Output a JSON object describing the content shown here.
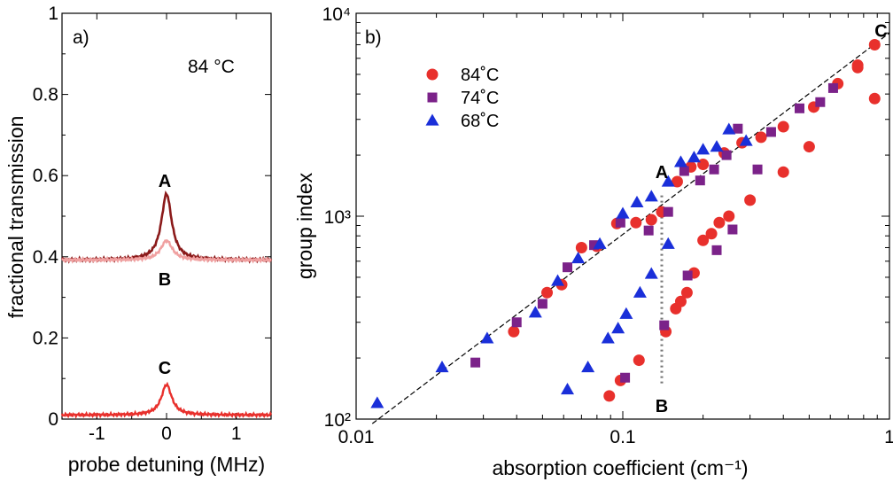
{
  "chart_data": [
    {
      "type": "line",
      "panel_label": "a)",
      "annotation": "84 °C",
      "xlabel": "probe detuning (MHz)",
      "ylabel": "fractional transmission",
      "xlim": [
        -1.5,
        1.5
      ],
      "ylim": [
        0,
        1
      ],
      "x_ticks": [
        "-1",
        "0",
        "1"
      ],
      "x_tick_values": [
        -1,
        0,
        1
      ],
      "y_ticks": [
        "0",
        "0.2",
        "0.4",
        "0.6",
        "0.8",
        "1"
      ],
      "y_tick_values": [
        0,
        0.2,
        0.4,
        0.6,
        0.8,
        1
      ],
      "y_tick_text": [
        "0",
        "0.2",
        "0.4",
        "0.6",
        "0.8",
        "1"
      ],
      "grid": false,
      "legend": "none",
      "series": [
        {
          "label": "A",
          "color": "#8b1a1a",
          "baseline": 0.392,
          "peak": 0.555,
          "center": 0,
          "width": 0.09
        },
        {
          "label": "B",
          "color": "#f0a0a0",
          "baseline": 0.392,
          "peak": 0.44,
          "center": 0,
          "width": 0.1
        },
        {
          "label": "C",
          "color": "#e8302c",
          "baseline": 0.01,
          "peak": 0.085,
          "center": 0,
          "width": 0.09
        }
      ],
      "curve_labels": [
        {
          "text": "A",
          "x": 0,
          "y": 0.585
        },
        {
          "text": "B",
          "x": 0,
          "y": 0.343
        },
        {
          "text": "C",
          "x": 0,
          "y": 0.125
        }
      ]
    },
    {
      "type": "scatter",
      "panel_label": "b)",
      "xlabel": "absorption coefficient (cm⁻¹)",
      "ylabel": "group index",
      "x_scale": "log",
      "y_scale": "log",
      "xlim": [
        0.01,
        1
      ],
      "ylim": [
        100,
        10000
      ],
      "x_ticks": [
        "0.01",
        "0.1",
        "1"
      ],
      "x_tick_values": [
        0.01,
        0.1,
        1
      ],
      "y_ticks": [
        "10²",
        "10³",
        "10⁴"
      ],
      "y_tick_values": [
        100,
        1000,
        10000
      ],
      "grid": false,
      "legend": "top-left",
      "fit_line": {
        "style": "dashed",
        "x": [
          0.0115,
          1
        ],
        "y": [
          95,
          8000
        ]
      },
      "marker_line": {
        "x": 0.14,
        "y": [
          150,
          1300
        ],
        "style": "dotted"
      },
      "point_labels": [
        {
          "text": "A",
          "x": 0.14,
          "y": 1650
        },
        {
          "text": "B",
          "x": 0.14,
          "y": 116
        },
        {
          "text": "C",
          "x": 0.93,
          "y": 8200
        }
      ],
      "series": [
        {
          "name": "84˚C",
          "marker": "circle",
          "color": "#e8302c",
          "x": [
            0.039,
            0.052,
            0.059,
            0.07,
            0.08,
            0.095,
            0.112,
            0.128,
            0.14,
            0.16,
            0.18,
            0.2,
            0.24,
            0.28,
            0.33,
            0.4,
            0.52,
            0.64,
            0.76,
            0.88,
            0.089,
            0.098,
            0.115,
            0.145,
            0.158,
            0.165,
            0.174,
            0.185,
            0.2,
            0.215,
            0.23,
            0.25,
            0.3,
            0.4,
            0.5,
            0.76,
            0.88
          ],
          "y": [
            270,
            420,
            460,
            700,
            710,
            920,
            930,
            960,
            1050,
            1480,
            1750,
            1800,
            2050,
            2300,
            2450,
            2760,
            3450,
            4500,
            5550,
            7000,
            130,
            155,
            195,
            270,
            350,
            380,
            420,
            525,
            760,
            820,
            930,
            1000,
            1200,
            1650,
            2200,
            5400,
            3800
          ]
        },
        {
          "name": "74˚C",
          "marker": "square",
          "color": "#7b2289",
          "x": [
            0.028,
            0.04,
            0.05,
            0.062,
            0.078,
            0.098,
            0.125,
            0.148,
            0.17,
            0.195,
            0.22,
            0.245,
            0.27,
            0.32,
            0.36,
            0.46,
            0.55,
            0.615,
            0.102,
            0.143,
            0.175,
            0.225,
            0.258
          ],
          "y": [
            190,
            300,
            370,
            560,
            720,
            930,
            850,
            1050,
            1670,
            1500,
            1700,
            2000,
            2700,
            1700,
            2600,
            3400,
            3650,
            4280,
            160,
            290,
            510,
            680,
            860
          ]
        },
        {
          "name": "68˚C",
          "marker": "triangle",
          "color": "#1a2fd9",
          "x": [
            0.012,
            0.021,
            0.031,
            0.047,
            0.057,
            0.068,
            0.082,
            0.1,
            0.113,
            0.128,
            0.148,
            0.165,
            0.185,
            0.2,
            0.225,
            0.25,
            0.29,
            0.062,
            0.074,
            0.088,
            0.096,
            0.103,
            0.116,
            0.128,
            0.148
          ],
          "y": [
            120,
            180,
            250,
            335,
            480,
            620,
            730,
            1030,
            1170,
            1250,
            1480,
            1850,
            1950,
            2130,
            2200,
            2680,
            2350,
            140,
            180,
            250,
            280,
            330,
            420,
            520,
            730
          ]
        }
      ]
    }
  ]
}
